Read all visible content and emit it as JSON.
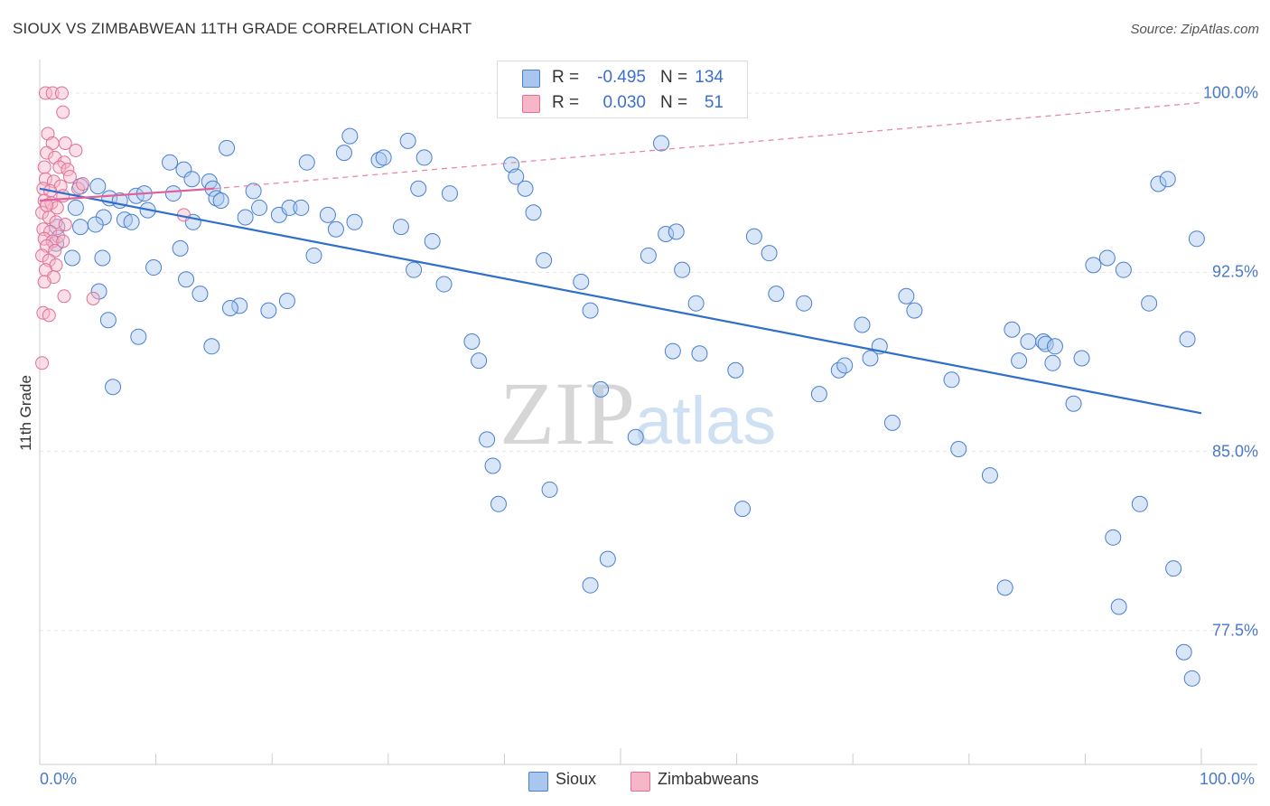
{
  "title": "SIOUX VS ZIMBABWEAN 11TH GRADE CORRELATION CHART",
  "source": "Source: ZipAtlas.com",
  "watermark": {
    "part1": "ZIP",
    "part2": "atlas"
  },
  "legend": {
    "rows": [
      {
        "r_label": "R =",
        "r_value": "-0.495",
        "n_label": "N =",
        "n_value": "134",
        "color": "#a9c7ee"
      },
      {
        "r_label": "R =",
        "r_value": "0.030",
        "n_label": "N =",
        "n_value": "51",
        "color": "#f6b6c8"
      }
    ]
  },
  "bottom_legend": [
    "Sioux",
    "Zimbabweans"
  ],
  "chart_data": {
    "type": "scatter",
    "title": "SIOUX VS ZIMBABWEAN 11TH GRADE CORRELATION CHART",
    "xlabel": "",
    "ylabel": "11th Grade",
    "xlim": [
      0,
      100
    ],
    "ylim": [
      71.9,
      101.4
    ],
    "x_tick_labels": [
      "0.0%",
      "100.0%"
    ],
    "y_ticks": [
      77.5,
      85.0,
      92.5,
      100.0
    ],
    "y_tick_labels": [
      "77.5%",
      "85.0%",
      "92.5%",
      "100.0%"
    ],
    "grid": true,
    "legend_position": "top-center",
    "series": [
      {
        "name": "Sioux",
        "color": "#a9c7ee",
        "stroke": "#4a7fd0",
        "trend": {
          "x": [
            0,
            100
          ],
          "y": [
            96.0,
            86.6
          ],
          "color": "#2f6fcc"
        },
        "points": [
          [
            5.0,
            96.1
          ],
          [
            6.0,
            95.6
          ],
          [
            8.3,
            95.7
          ],
          [
            9.3,
            95.1
          ],
          [
            9.0,
            95.8
          ],
          [
            3.5,
            96.1
          ],
          [
            3.1,
            95.2
          ],
          [
            7.3,
            94.7
          ],
          [
            5.5,
            94.8
          ],
          [
            1.5,
            94.4
          ],
          [
            1.4,
            93.7
          ],
          [
            2.8,
            93.1
          ],
          [
            5.4,
            93.1
          ],
          [
            4.8,
            94.5
          ],
          [
            3.5,
            94.4
          ],
          [
            6.9,
            95.5
          ],
          [
            7.9,
            94.6
          ],
          [
            11.5,
            95.8
          ],
          [
            11.2,
            97.1
          ],
          [
            12.4,
            96.8
          ],
          [
            13.1,
            96.4
          ],
          [
            13.2,
            94.6
          ],
          [
            14.6,
            96.3
          ],
          [
            14.9,
            96.0
          ],
          [
            15.2,
            95.6
          ],
          [
            15.6,
            95.5
          ],
          [
            16.1,
            97.7
          ],
          [
            18.4,
            95.9
          ],
          [
            18.9,
            95.2
          ],
          [
            17.7,
            94.8
          ],
          [
            20.6,
            94.9
          ],
          [
            21.5,
            95.2
          ],
          [
            22.5,
            95.2
          ],
          [
            23.6,
            93.2
          ],
          [
            23.0,
            97.1
          ],
          [
            24.8,
            94.9
          ],
          [
            25.5,
            94.3
          ],
          [
            26.2,
            97.5
          ],
          [
            26.7,
            98.2
          ],
          [
            27.1,
            94.6
          ],
          [
            29.2,
            97.2
          ],
          [
            29.6,
            97.3
          ],
          [
            31.1,
            94.4
          ],
          [
            31.7,
            98.0
          ],
          [
            32.2,
            92.6
          ],
          [
            32.6,
            96.0
          ],
          [
            33.1,
            97.3
          ],
          [
            33.8,
            93.8
          ],
          [
            35.3,
            95.8
          ],
          [
            37.2,
            89.6
          ],
          [
            34.8,
            92.0
          ],
          [
            37.8,
            88.8
          ],
          [
            38.5,
            85.5
          ],
          [
            39.0,
            84.4
          ],
          [
            39.5,
            82.8
          ],
          [
            40.6,
            97.0
          ],
          [
            41.0,
            96.5
          ],
          [
            41.8,
            96.0
          ],
          [
            42.5,
            95.0
          ],
          [
            43.4,
            93.0
          ],
          [
            43.9,
            83.4
          ],
          [
            46.6,
            92.1
          ],
          [
            47.4,
            90.9
          ],
          [
            48.3,
            87.6
          ],
          [
            47.4,
            79.4
          ],
          [
            48.9,
            80.5
          ],
          [
            51.3,
            85.6
          ],
          [
            52.4,
            93.2
          ],
          [
            53.5,
            97.9
          ],
          [
            53.9,
            94.1
          ],
          [
            54.8,
            94.2
          ],
          [
            55.3,
            92.6
          ],
          [
            54.5,
            89.2
          ],
          [
            56.5,
            91.2
          ],
          [
            56.8,
            89.1
          ],
          [
            59.9,
            88.4
          ],
          [
            60.5,
            82.6
          ],
          [
            61.5,
            94.0
          ],
          [
            62.8,
            93.3
          ],
          [
            63.4,
            91.6
          ],
          [
            65.8,
            91.2
          ],
          [
            67.1,
            87.4
          ],
          [
            68.8,
            88.4
          ],
          [
            69.3,
            88.6
          ],
          [
            70.8,
            90.3
          ],
          [
            71.5,
            88.9
          ],
          [
            72.3,
            89.4
          ],
          [
            73.4,
            86.2
          ],
          [
            74.6,
            91.5
          ],
          [
            75.3,
            90.9
          ],
          [
            78.5,
            88.0
          ],
          [
            79.1,
            85.1
          ],
          [
            81.8,
            84.0
          ],
          [
            83.1,
            79.3
          ],
          [
            83.7,
            90.1
          ],
          [
            84.3,
            88.8
          ],
          [
            85.1,
            89.6
          ],
          [
            86.4,
            89.6
          ],
          [
            86.6,
            89.5
          ],
          [
            87.2,
            88.7
          ],
          [
            87.4,
            89.4
          ],
          [
            89.0,
            87.0
          ],
          [
            89.7,
            88.9
          ],
          [
            90.7,
            92.8
          ],
          [
            91.9,
            93.1
          ],
          [
            92.4,
            81.4
          ],
          [
            92.9,
            78.5
          ],
          [
            93.3,
            92.6
          ],
          [
            94.7,
            82.8
          ],
          [
            95.5,
            91.2
          ],
          [
            96.3,
            96.2
          ],
          [
            97.1,
            96.4
          ],
          [
            97.6,
            80.1
          ],
          [
            99.2,
            75.5
          ],
          [
            98.8,
            89.7
          ],
          [
            98.5,
            76.6
          ],
          [
            99.6,
            93.9
          ],
          [
            21.3,
            91.3
          ],
          [
            17.2,
            91.1
          ],
          [
            19.7,
            90.9
          ],
          [
            16.4,
            91.0
          ],
          [
            14.8,
            89.4
          ],
          [
            13.8,
            91.6
          ],
          [
            12.6,
            92.2
          ],
          [
            12.1,
            93.5
          ],
          [
            8.5,
            89.8
          ],
          [
            6.3,
            87.7
          ],
          [
            9.8,
            92.7
          ],
          [
            5.1,
            91.7
          ],
          [
            5.9,
            90.5
          ]
        ]
      },
      {
        "name": "Zimbabweans",
        "color": "#f6b6c8",
        "stroke": "#e07098",
        "trend": {
          "x": [
            0,
            15
          ],
          "y": [
            95.5,
            96.0
          ],
          "color": "#e0609a"
        },
        "trend_extension": {
          "x": [
            15,
            100
          ],
          "y": [
            96.0,
            99.6
          ],
          "color": "#e888a8"
        },
        "points": [
          [
            0.5,
            100.0
          ],
          [
            1.1,
            100.0
          ],
          [
            1.9,
            100.0
          ],
          [
            2.0,
            99.2
          ],
          [
            0.7,
            98.3
          ],
          [
            1.1,
            97.9
          ],
          [
            2.2,
            97.9
          ],
          [
            3.1,
            97.6
          ],
          [
            0.6,
            97.5
          ],
          [
            1.3,
            97.3
          ],
          [
            2.1,
            97.1
          ],
          [
            0.4,
            96.9
          ],
          [
            1.7,
            96.9
          ],
          [
            2.4,
            96.8
          ],
          [
            0.5,
            96.4
          ],
          [
            1.2,
            96.3
          ],
          [
            1.8,
            96.1
          ],
          [
            0.3,
            96.0
          ],
          [
            0.9,
            95.9
          ],
          [
            2.0,
            95.7
          ],
          [
            0.4,
            95.5
          ],
          [
            1.0,
            95.4
          ],
          [
            1.5,
            95.2
          ],
          [
            0.2,
            95.0
          ],
          [
            0.8,
            94.8
          ],
          [
            1.4,
            94.6
          ],
          [
            2.2,
            94.5
          ],
          [
            0.3,
            94.3
          ],
          [
            0.9,
            94.2
          ],
          [
            1.6,
            94.0
          ],
          [
            0.4,
            93.9
          ],
          [
            1.1,
            93.8
          ],
          [
            2.0,
            93.8
          ],
          [
            0.6,
            93.6
          ],
          [
            1.3,
            93.4
          ],
          [
            0.2,
            93.2
          ],
          [
            0.8,
            93.0
          ],
          [
            1.4,
            92.8
          ],
          [
            0.5,
            92.6
          ],
          [
            1.2,
            92.3
          ],
          [
            0.4,
            92.1
          ],
          [
            2.1,
            91.5
          ],
          [
            4.6,
            91.4
          ],
          [
            0.3,
            90.8
          ],
          [
            0.8,
            90.7
          ],
          [
            0.2,
            88.7
          ],
          [
            12.4,
            94.9
          ],
          [
            3.3,
            96.0
          ],
          [
            3.7,
            96.2
          ],
          [
            2.6,
            96.5
          ],
          [
            0.6,
            95.3
          ]
        ]
      }
    ]
  }
}
